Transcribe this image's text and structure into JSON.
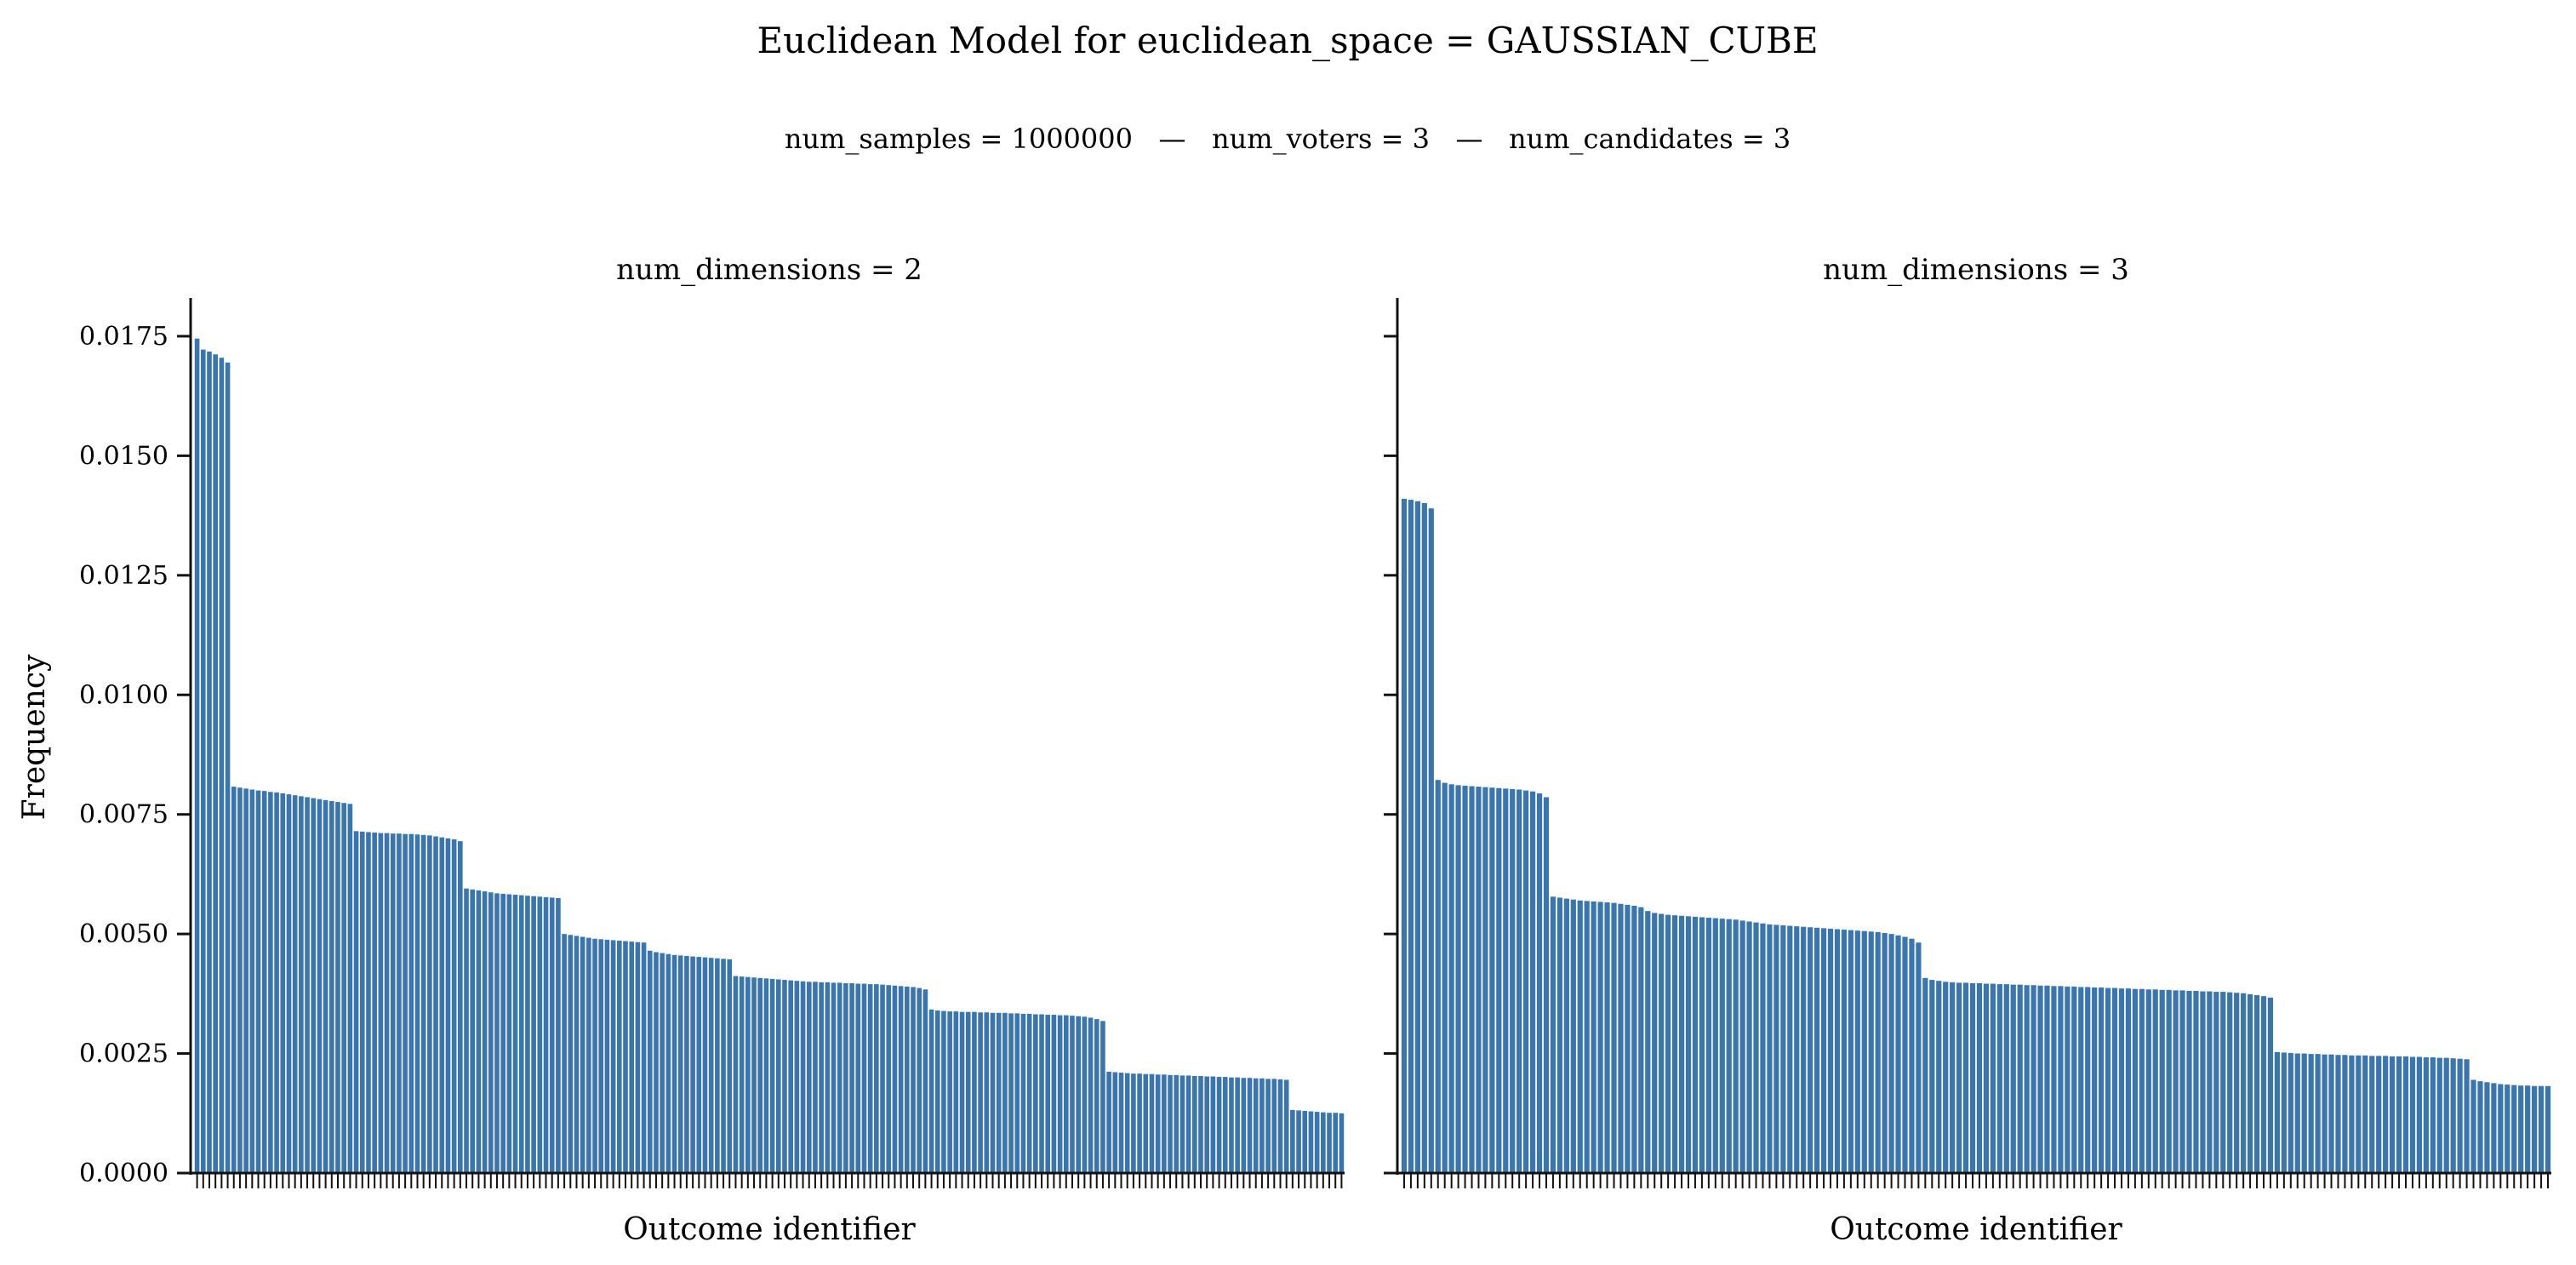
{
  "chart_data": {
    "title": "Euclidean Model for euclidean_space = GAUSSIAN_CUBE",
    "subtitle": "num_samples = 1000000   —   num_voters = 3   —   num_candidates = 3",
    "type": "bar",
    "ylabel": "Frequency",
    "xlabel": "Outcome identifier",
    "ylim": [
      0,
      0.0183
    ],
    "yticks": [
      "0.0000",
      "0.0025",
      "0.0050",
      "0.0075",
      "0.0100",
      "0.0125",
      "0.0150",
      "0.0175"
    ],
    "bar_color": "#3b75af",
    "panels": [
      {
        "title": "num_dimensions = 2",
        "series": [
          {
            "values": [
              0.01745,
              0.01722,
              0.01718,
              0.01712,
              0.01705,
              0.01695,
              0.00808,
              0.00806,
              0.00804,
              0.00802,
              0.008,
              0.00799,
              0.00797,
              0.00796,
              0.00794,
              0.00792,
              0.0079,
              0.00788,
              0.00786,
              0.00784,
              0.00782,
              0.0078,
              0.00778,
              0.00776,
              0.00774,
              0.00772,
              0.00715,
              0.00714,
              0.00713,
              0.00712,
              0.00711,
              0.00711,
              0.0071,
              0.0071,
              0.00709,
              0.00709,
              0.00708,
              0.00707,
              0.00706,
              0.00704,
              0.00702,
              0.007,
              0.00698,
              0.00694,
              0.00595,
              0.00593,
              0.00591,
              0.00589,
              0.00587,
              0.00585,
              0.00584,
              0.00583,
              0.00582,
              0.00581,
              0.0058,
              0.00579,
              0.00578,
              0.00577,
              0.00576,
              0.00575,
              0.005,
              0.00498,
              0.00496,
              0.00494,
              0.00492,
              0.0049,
              0.00489,
              0.00488,
              0.00487,
              0.00486,
              0.00485,
              0.00484,
              0.00483,
              0.00482,
              0.00465,
              0.00462,
              0.0046,
              0.00458,
              0.00456,
              0.00455,
              0.00454,
              0.00453,
              0.00452,
              0.00451,
              0.0045,
              0.00449,
              0.00448,
              0.00447,
              0.00412,
              0.00411,
              0.0041,
              0.00409,
              0.00408,
              0.00407,
              0.00406,
              0.00405,
              0.00404,
              0.00403,
              0.00402,
              0.00401,
              0.004,
              0.004,
              0.00399,
              0.00399,
              0.00398,
              0.00398,
              0.00397,
              0.00397,
              0.00396,
              0.00396,
              0.00395,
              0.00395,
              0.00394,
              0.00393,
              0.00392,
              0.00391,
              0.0039,
              0.00389,
              0.00387,
              0.00384,
              0.00342,
              0.0034,
              0.00339,
              0.00338,
              0.00338,
              0.00337,
              0.00337,
              0.00337,
              0.00336,
              0.00336,
              0.00335,
              0.00335,
              0.00335,
              0.00334,
              0.00334,
              0.00333,
              0.00333,
              0.00332,
              0.00332,
              0.00331,
              0.00331,
              0.0033,
              0.0033,
              0.00329,
              0.00328,
              0.00327,
              0.00325,
              0.00322,
              0.00318,
              0.00212,
              0.00211,
              0.0021,
              0.00209,
              0.00208,
              0.00208,
              0.00207,
              0.00207,
              0.00206,
              0.00206,
              0.00205,
              0.00205,
              0.00204,
              0.00204,
              0.00203,
              0.00203,
              0.00202,
              0.00202,
              0.00201,
              0.00201,
              0.002,
              0.002,
              0.00199,
              0.00199,
              0.00198,
              0.00198,
              0.00197,
              0.00197,
              0.00196,
              0.00195,
              0.00132,
              0.00131,
              0.0013,
              0.00129,
              0.00128,
              0.00127,
              0.00126,
              0.00126,
              0.00125
            ]
          }
        ]
      },
      {
        "title": "num_dimensions = 3",
        "series": [
          {
            "values": [
              0.0141,
              0.01408,
              0.01405,
              0.01401,
              0.0139,
              0.00822,
              0.00816,
              0.00813,
              0.00811,
              0.0081,
              0.00809,
              0.00808,
              0.00807,
              0.00806,
              0.00805,
              0.00804,
              0.00803,
              0.00802,
              0.008,
              0.00798,
              0.00794,
              0.00786,
              0.00578,
              0.00576,
              0.00574,
              0.00572,
              0.0057,
              0.00569,
              0.00568,
              0.00567,
              0.00566,
              0.00565,
              0.00563,
              0.00561,
              0.00559,
              0.00556,
              0.00548,
              0.00544,
              0.00542,
              0.0054,
              0.00539,
              0.00538,
              0.00537,
              0.00536,
              0.00535,
              0.00534,
              0.00533,
              0.00532,
              0.00531,
              0.0053,
              0.00528,
              0.00526,
              0.00524,
              0.00522,
              0.0052,
              0.00519,
              0.00518,
              0.00517,
              0.00516,
              0.00515,
              0.00514,
              0.00513,
              0.00512,
              0.00511,
              0.0051,
              0.00509,
              0.00508,
              0.00507,
              0.00506,
              0.00505,
              0.00504,
              0.00502,
              0.005,
              0.00497,
              0.00494,
              0.0049,
              0.00482,
              0.00408,
              0.00404,
              0.00402,
              0.004,
              0.00399,
              0.00398,
              0.00398,
              0.00397,
              0.00397,
              0.00396,
              0.00396,
              0.00395,
              0.00395,
              0.00394,
              0.00394,
              0.00393,
              0.00393,
              0.00392,
              0.00392,
              0.00391,
              0.00391,
              0.0039,
              0.0039,
              0.00389,
              0.00389,
              0.00388,
              0.00388,
              0.00387,
              0.00387,
              0.00386,
              0.00386,
              0.00385,
              0.00385,
              0.00384,
              0.00384,
              0.00383,
              0.00383,
              0.00382,
              0.00382,
              0.00381,
              0.00381,
              0.0038,
              0.0038,
              0.00379,
              0.00379,
              0.00378,
              0.00377,
              0.00376,
              0.00374,
              0.00372,
              0.0037,
              0.00367,
              0.00253,
              0.00252,
              0.00251,
              0.0025,
              0.0025,
              0.00249,
              0.00249,
              0.00248,
              0.00248,
              0.00247,
              0.00247,
              0.00246,
              0.00246,
              0.00246,
              0.00245,
              0.00245,
              0.00245,
              0.00244,
              0.00244,
              0.00244,
              0.00243,
              0.00243,
              0.00242,
              0.00242,
              0.00241,
              0.00241,
              0.0024,
              0.00239,
              0.00238,
              0.00195,
              0.00192,
              0.0019,
              0.00188,
              0.00186,
              0.00185,
              0.00184,
              0.00183,
              0.00183,
              0.00182,
              0.00182,
              0.00182
            ]
          }
        ]
      }
    ]
  }
}
